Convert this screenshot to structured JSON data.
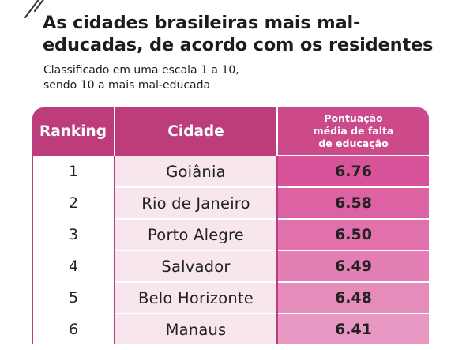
{
  "header": {
    "title": "As cidades brasileiras mais mal-educadas, de acordo com os residentes",
    "subtitle_line1": "Classificado em uma escala 1 a 10,",
    "subtitle_line2": "sendo 10 a mais mal-educada"
  },
  "table": {
    "columns": {
      "ranking": "Ranking",
      "city": "Cidade",
      "score_line1": "Pontuação",
      "score_line2": "média de falta",
      "score_line3": "de educação"
    },
    "rows": [
      {
        "rank": "1",
        "city": "Goiânia",
        "score": "6.76",
        "shade": "#d8539a"
      },
      {
        "rank": "2",
        "city": "Rio de Janeiro",
        "score": "6.58",
        "shade": "#dc62a3"
      },
      {
        "rank": "3",
        "city": "Porto Alegre",
        "score": "6.50",
        "shade": "#e071ac"
      },
      {
        "rank": "4",
        "city": "Salvador",
        "score": "6.49",
        "shade": "#e37fb4"
      },
      {
        "rank": "5",
        "city": "Belo Horizonte",
        "score": "6.48",
        "shade": "#e68cbb"
      },
      {
        "rank": "6",
        "city": "Manaus",
        "score": "6.41",
        "shade": "#e898c2"
      }
    ]
  },
  "colors": {
    "header_bg": "#bd3d7c",
    "city_cell_bg": "#f8e6ee"
  }
}
